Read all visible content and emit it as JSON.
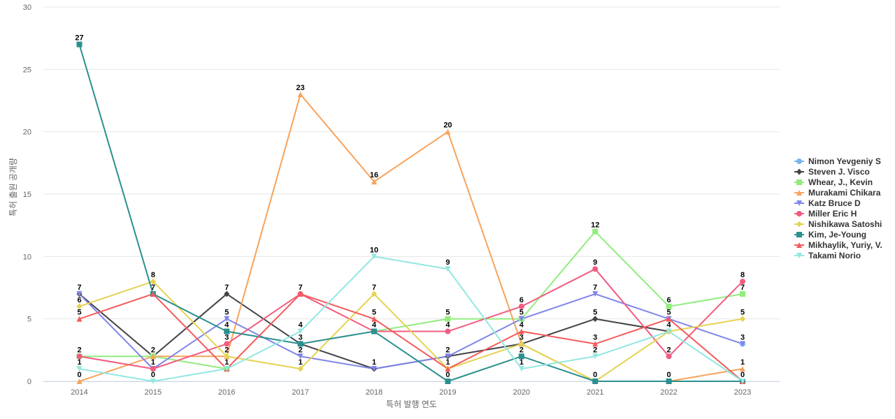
{
  "chart_data": {
    "type": "line",
    "title": "",
    "xlabel": "특허 발행 연도",
    "ylabel": "특허 출원 공개량",
    "ylim": [
      0,
      30
    ],
    "y_ticks": [
      0,
      5,
      10,
      15,
      20,
      25,
      30
    ],
    "grid": true,
    "legend_position": "right",
    "x": [
      "2014",
      "2015",
      "2016",
      "2017",
      "2018",
      "2019",
      "2020",
      "2021",
      "2022",
      "2023"
    ],
    "series": [
      {
        "name": "Nimon Yevgeniy S",
        "color": "#7cb5ec",
        "marker": "circle",
        "values": [
          null,
          null,
          null,
          null,
          null,
          null,
          null,
          null,
          null,
          3
        ]
      },
      {
        "name": "Steven J. Visco",
        "color": "#434348",
        "marker": "diamond",
        "values": [
          7,
          2,
          7,
          3,
          1,
          2,
          3,
          5,
          4,
          null
        ]
      },
      {
        "name": "Whear, J., Kevin",
        "color": "#90ed7d",
        "marker": "square",
        "values": [
          2,
          2,
          1,
          null,
          4,
          5,
          5,
          12,
          6,
          7
        ]
      },
      {
        "name": "Murakami Chikara",
        "color": "#f7a35c",
        "marker": "triangle",
        "values": [
          0,
          2,
          2,
          23,
          16,
          20,
          3,
          0,
          0,
          1
        ]
      },
      {
        "name": "Katz Bruce D",
        "color": "#8085e9",
        "marker": "triangle-down",
        "values": [
          7,
          1,
          5,
          2,
          1,
          2,
          5,
          7,
          5,
          3
        ]
      },
      {
        "name": "Miller Eric H",
        "color": "#f15c80",
        "marker": "circle",
        "values": [
          2,
          1,
          3,
          7,
          4,
          4,
          6,
          9,
          2,
          8
        ]
      },
      {
        "name": "Nishikawa Satoshi",
        "color": "#e4d354",
        "marker": "diamond",
        "values": [
          6,
          8,
          2,
          1,
          7,
          1,
          3,
          0,
          4,
          5
        ]
      },
      {
        "name": "Kim, Je-Young",
        "color": "#2b908f",
        "marker": "square",
        "values": [
          27,
          7,
          4,
          3,
          4,
          0,
          2,
          0,
          0,
          0
        ]
      },
      {
        "name": "Mikhaylik, Yuriy, V.",
        "color": "#f45b5b",
        "marker": "triangle",
        "values": [
          5,
          7,
          1,
          7,
          5,
          1,
          4,
          3,
          5,
          0
        ]
      },
      {
        "name": "Takami Norio",
        "color": "#91e8e1",
        "marker": "triangle-down",
        "values": [
          1,
          0,
          1,
          4,
          10,
          9,
          1,
          2,
          4,
          0
        ]
      }
    ],
    "data_labels": [
      {
        "x": "2014",
        "y": 27,
        "text": "27"
      },
      {
        "x": "2014",
        "y": 7,
        "text": "7"
      },
      {
        "x": "2014",
        "y": 6,
        "text": "6"
      },
      {
        "x": "2014",
        "y": 5,
        "text": "5"
      },
      {
        "x": "2014",
        "y": 2,
        "text": "2"
      },
      {
        "x": "2014",
        "y": 1,
        "text": "1"
      },
      {
        "x": "2014",
        "y": 0,
        "text": "0"
      },
      {
        "x": "2015",
        "y": 8,
        "text": "8"
      },
      {
        "x": "2015",
        "y": 7,
        "text": "7"
      },
      {
        "x": "2015",
        "y": 2,
        "text": "2"
      },
      {
        "x": "2015",
        "y": 1,
        "text": "1"
      },
      {
        "x": "2015",
        "y": 0,
        "text": "0"
      },
      {
        "x": "2016",
        "y": 7,
        "text": "7"
      },
      {
        "x": "2016",
        "y": 5,
        "text": "5"
      },
      {
        "x": "2016",
        "y": 4,
        "text": "4"
      },
      {
        "x": "2016",
        "y": 3,
        "text": "3"
      },
      {
        "x": "2016",
        "y": 2,
        "text": "2"
      },
      {
        "x": "2016",
        "y": 1,
        "text": "1"
      },
      {
        "x": "2017",
        "y": 23,
        "text": "23"
      },
      {
        "x": "2017",
        "y": 7,
        "text": "7"
      },
      {
        "x": "2017",
        "y": 4,
        "text": "4"
      },
      {
        "x": "2017",
        "y": 3,
        "text": "3"
      },
      {
        "x": "2017",
        "y": 2,
        "text": "2"
      },
      {
        "x": "2017",
        "y": 1,
        "text": "1"
      },
      {
        "x": "2018",
        "y": 16,
        "text": "16"
      },
      {
        "x": "2018",
        "y": 10,
        "text": "10"
      },
      {
        "x": "2018",
        "y": 7,
        "text": "7"
      },
      {
        "x": "2018",
        "y": 5,
        "text": "5"
      },
      {
        "x": "2018",
        "y": 4,
        "text": "4"
      },
      {
        "x": "2018",
        "y": 1,
        "text": "1"
      },
      {
        "x": "2019",
        "y": 20,
        "text": "20"
      },
      {
        "x": "2019",
        "y": 9,
        "text": "9"
      },
      {
        "x": "2019",
        "y": 5,
        "text": "5"
      },
      {
        "x": "2019",
        "y": 4,
        "text": "4"
      },
      {
        "x": "2019",
        "y": 2,
        "text": "2"
      },
      {
        "x": "2019",
        "y": 1,
        "text": "1"
      },
      {
        "x": "2019",
        "y": 0,
        "text": "0"
      },
      {
        "x": "2020",
        "y": 6,
        "text": "6"
      },
      {
        "x": "2020",
        "y": 5,
        "text": "5"
      },
      {
        "x": "2020",
        "y": 4,
        "text": "4"
      },
      {
        "x": "2020",
        "y": 3,
        "text": "3"
      },
      {
        "x": "2020",
        "y": 2,
        "text": "2"
      },
      {
        "x": "2020",
        "y": 1,
        "text": "1"
      },
      {
        "x": "2021",
        "y": 12,
        "text": "12"
      },
      {
        "x": "2021",
        "y": 9,
        "text": "9"
      },
      {
        "x": "2021",
        "y": 7,
        "text": "7"
      },
      {
        "x": "2021",
        "y": 5,
        "text": "5"
      },
      {
        "x": "2021",
        "y": 3,
        "text": "3"
      },
      {
        "x": "2021",
        "y": 2,
        "text": "2"
      },
      {
        "x": "2021",
        "y": 0,
        "text": "0"
      },
      {
        "x": "2022",
        "y": 6,
        "text": "6"
      },
      {
        "x": "2022",
        "y": 5,
        "text": "5"
      },
      {
        "x": "2022",
        "y": 4,
        "text": "4"
      },
      {
        "x": "2022",
        "y": 2,
        "text": "2"
      },
      {
        "x": "2022",
        "y": 0,
        "text": "0"
      },
      {
        "x": "2023",
        "y": 8,
        "text": "8"
      },
      {
        "x": "2023",
        "y": 7,
        "text": "7"
      },
      {
        "x": "2023",
        "y": 5,
        "text": "5"
      },
      {
        "x": "2023",
        "y": 3,
        "text": "3"
      },
      {
        "x": "2023",
        "y": 1,
        "text": "1"
      },
      {
        "x": "2023",
        "y": 0,
        "text": "0"
      }
    ]
  }
}
